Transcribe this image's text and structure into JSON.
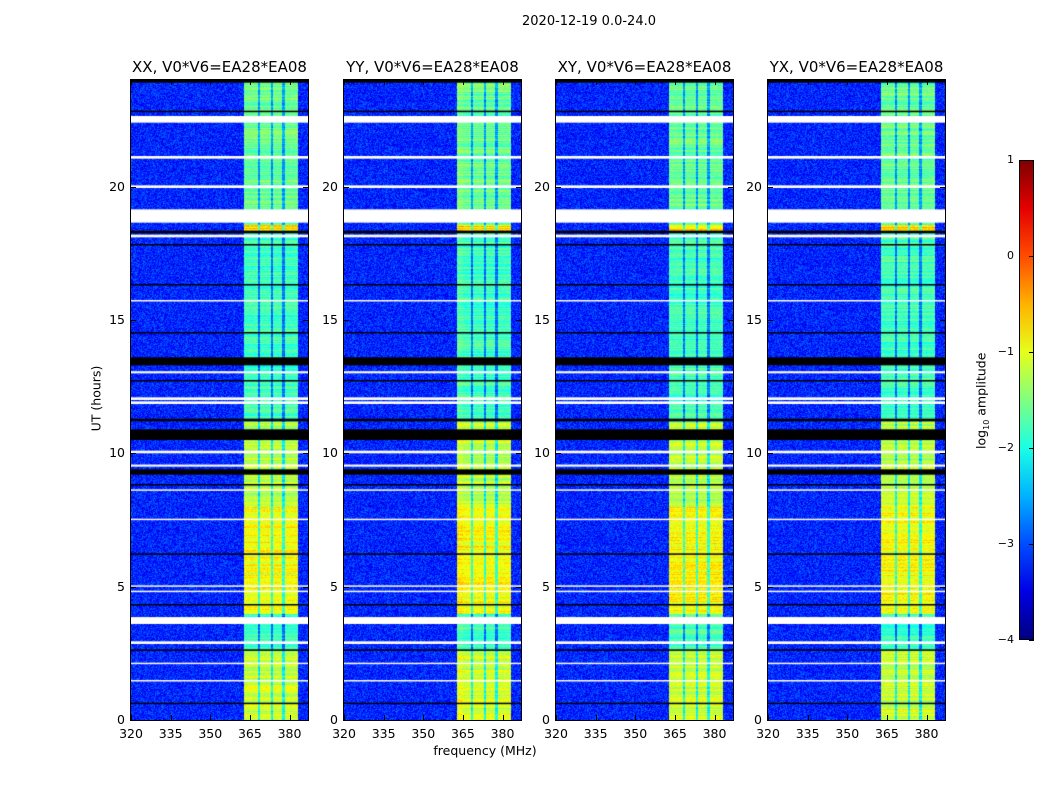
{
  "chart_data": {
    "type": "heatmap",
    "title": "2020-12-19 0.0-24.0",
    "xlabel": "frequency (MHz)",
    "ylabel": "UT (hours)",
    "xlim": [
      320,
      387
    ],
    "ylim": [
      0,
      24
    ],
    "xticks": [
      "320",
      "335",
      "350",
      "365",
      "380"
    ],
    "xtick_values": [
      320,
      335,
      350,
      365,
      380
    ],
    "yticks": [
      "0",
      "5",
      "10",
      "15",
      "20"
    ],
    "ytick_values": [
      0,
      5,
      10,
      15,
      20
    ],
    "panels": [
      {
        "title": "XX, V0*V6=EA28*EA08"
      },
      {
        "title": "YY, V0*V6=EA28*EA08"
      },
      {
        "title": "XY, V0*V6=EA28*EA08"
      },
      {
        "title": "YX, V0*V6=EA28*EA08"
      }
    ],
    "colormap": "jet",
    "colorbar": {
      "label": "log10 amplitude",
      "label_main": "log",
      "label_sub": "10",
      "label_rest": " amplitude",
      "range": [
        -4,
        1
      ],
      "ticks": [
        "1",
        "0",
        "−1",
        "−2",
        "−3",
        "−4"
      ],
      "tick_values": [
        1,
        0,
        -1,
        -2,
        -3,
        -4
      ]
    },
    "background_level": -3.2,
    "signal_band_mhz": [
      362.5,
      383
    ],
    "channel_gaps_mhz": [
      368.3,
      373.2,
      377.6
    ],
    "signal_profile": [
      {
        "from": 0,
        "to": 2.6,
        "level": -1.1
      },
      {
        "from": 2.6,
        "to": 4.0,
        "level": -1.8
      },
      {
        "from": 4.0,
        "to": 8.0,
        "level": -0.9
      },
      {
        "from": 8.0,
        "to": 11.2,
        "level": -1.2
      },
      {
        "from": 11.2,
        "to": 18.3,
        "level": -1.8
      },
      {
        "from": 18.3,
        "to": 18.6,
        "level": -0.7
      },
      {
        "from": 18.6,
        "to": 24,
        "level": -1.6
      }
    ],
    "flagged_hours_white": [
      [
        22.4,
        22.65
      ],
      [
        21.05,
        21.15
      ],
      [
        19.95,
        20.05
      ],
      [
        18.65,
        19.15
      ],
      [
        18.1,
        18.2
      ],
      [
        15.7,
        15.75
      ],
      [
        13.0,
        13.08
      ],
      [
        12.0,
        12.1
      ],
      [
        11.85,
        11.95
      ],
      [
        10.0,
        10.1
      ],
      [
        9.5,
        9.58
      ],
      [
        8.6,
        8.65
      ],
      [
        7.5,
        7.55
      ],
      [
        5.0,
        5.05
      ],
      [
        4.8,
        4.85
      ],
      [
        3.6,
        3.86
      ],
      [
        2.85,
        2.95
      ],
      [
        2.1,
        2.15
      ],
      [
        1.45,
        1.5
      ]
    ],
    "zero_hours_black": [
      [
        23.9,
        24
      ],
      [
        22.8,
        22.85
      ],
      [
        18.25,
        18.35
      ],
      [
        17.8,
        17.85
      ],
      [
        16.3,
        16.35
      ],
      [
        14.5,
        14.55
      ],
      [
        13.3,
        13.6
      ],
      [
        12.7,
        12.75
      ],
      [
        11.2,
        11.3
      ],
      [
        10.5,
        10.9
      ],
      [
        9.2,
        9.4
      ],
      [
        8.8,
        8.85
      ],
      [
        6.2,
        6.25
      ],
      [
        4.3,
        4.35
      ],
      [
        2.6,
        2.65
      ],
      [
        0.6,
        0.65
      ]
    ]
  }
}
